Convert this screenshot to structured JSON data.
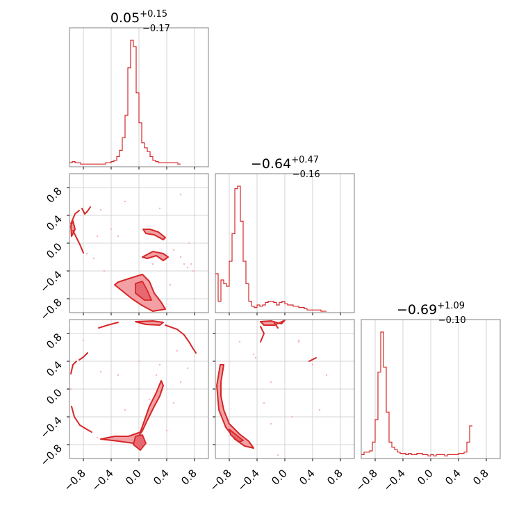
{
  "chart_data": {
    "type": "corner",
    "color": "#d62728",
    "fill_color": "#f2a0a4",
    "grid": true,
    "axis_range": [
      -1,
      1
    ],
    "tick_values": [
      -0.8,
      -0.4,
      0.0,
      0.4,
      0.8
    ],
    "tick_labels": [
      "−0.8",
      "−0.4",
      "0.0",
      "0.4",
      "0.8"
    ],
    "titles": [
      {
        "value": "0.05",
        "plus": "+0.15",
        "minus": "−0.17"
      },
      {
        "value": "−0.64",
        "plus": "+0.47",
        "minus": "−0.16"
      },
      {
        "value": "−0.69",
        "plus": "+1.09",
        "minus": "−0.10"
      }
    ],
    "histograms": [
      {
        "bin_start": -1.0,
        "bin_width": 0.04,
        "counts": [
          2,
          3,
          2,
          2,
          1,
          1,
          1,
          1,
          1,
          1,
          1,
          1,
          1,
          2,
          2,
          3,
          4,
          7,
          12,
          22,
          40,
          78,
          100,
          95,
          58,
          34,
          18,
          14,
          11,
          7,
          4,
          3,
          2,
          2,
          2,
          2,
          2,
          2,
          2,
          1
        ]
      },
      {
        "bin_start": -1.0,
        "bin_width": 0.04,
        "counts": [
          30,
          8,
          25,
          22,
          20,
          40,
          62,
          98,
          100,
          72,
          40,
          22,
          8,
          4,
          3,
          5,
          4,
          5,
          7,
          8,
          8,
          7,
          5,
          7,
          8,
          6,
          5,
          5,
          4,
          4,
          3,
          3,
          2,
          1,
          1,
          1,
          1,
          1,
          0,
          0
        ]
      },
      {
        "bin_start": -1.0,
        "bin_width": 0.04,
        "counts": [
          2,
          4,
          4,
          5,
          12,
          30,
          68,
          100,
          72,
          36,
          12,
          8,
          6,
          4,
          3,
          3,
          2,
          3,
          2,
          2,
          3,
          3,
          2,
          2,
          1,
          2,
          1,
          2,
          2,
          2,
          1,
          2,
          2,
          2,
          2,
          3,
          3,
          4,
          12,
          25
        ]
      }
    ],
    "panels_2d": [
      {
        "row": 1,
        "col": 0,
        "fills": [
          [
            [
              -0.3,
              -0.56
            ],
            [
              -0.05,
              -0.48
            ],
            [
              0.05,
              -0.45
            ],
            [
              0.15,
              -0.55
            ],
            [
              0.22,
              -0.72
            ],
            [
              0.32,
              -0.85
            ],
            [
              0.38,
              -0.95
            ],
            [
              0.2,
              -0.98
            ],
            [
              0.05,
              -0.9
            ],
            [
              -0.1,
              -0.8
            ],
            [
              -0.25,
              -0.68
            ],
            [
              -0.35,
              -0.6
            ]
          ],
          [
            [
              0.05,
              -0.2
            ],
            [
              0.2,
              -0.12
            ],
            [
              0.35,
              -0.15
            ],
            [
              0.42,
              -0.2
            ],
            [
              0.35,
              -0.25
            ],
            [
              0.25,
              -0.18
            ],
            [
              0.12,
              -0.22
            ]
          ],
          [
            [
              0.06,
              0.2
            ],
            [
              0.16,
              0.2
            ],
            [
              0.28,
              0.16
            ],
            [
              0.38,
              0.08
            ],
            [
              0.35,
              0.05
            ],
            [
              0.22,
              0.12
            ],
            [
              0.1,
              0.14
            ]
          ],
          [
            [
              -0.98,
              0.25
            ],
            [
              -0.95,
              0.32
            ],
            [
              -0.92,
              0.2
            ],
            [
              -0.97,
              0.1
            ]
          ]
        ],
        "fills_inner": [
          [
            [
              -0.05,
              -0.58
            ],
            [
              0.05,
              -0.55
            ],
            [
              0.12,
              -0.68
            ],
            [
              0.18,
              -0.82
            ],
            [
              0.08,
              -0.82
            ],
            [
              -0.05,
              -0.72
            ]
          ]
        ],
        "lines": [
          [
            [
              -0.98,
              0.28
            ],
            [
              -0.92,
              0.42
            ],
            [
              -0.86,
              0.47
            ]
          ],
          [
            [
              -0.95,
              0.18
            ],
            [
              -0.9,
              0.08
            ],
            [
              -0.85,
              -0.02
            ],
            [
              -0.8,
              -0.14
            ]
          ],
          [
            [
              -0.82,
              0.5
            ],
            [
              -0.78,
              0.42
            ],
            [
              -0.74,
              0.46
            ],
            [
              -0.7,
              0.52
            ]
          ]
        ],
        "points": [
          [
            -0.55,
            0.48
          ],
          [
            -0.4,
            0.2
          ],
          [
            -0.3,
            0.1
          ],
          [
            -0.75,
            -0.15
          ],
          [
            -0.65,
            -0.22
          ],
          [
            0.2,
            -0.3
          ],
          [
            0.5,
            -0.1
          ],
          [
            0.6,
            -0.2
          ],
          [
            0.65,
            -0.3
          ],
          [
            0.7,
            -0.35
          ],
          [
            0.78,
            -0.4
          ],
          [
            0.75,
            -0.3
          ],
          [
            -0.5,
            -0.4
          ],
          [
            0.3,
            0.5
          ],
          [
            0.6,
            0.7
          ],
          [
            0.72,
            0.0
          ],
          [
            -0.2,
            0.6
          ],
          [
            -0.6,
            0.1
          ],
          [
            0.45,
            -0.6
          ]
        ]
      },
      {
        "row": 2,
        "col": 0,
        "fills": [
          [
            [
              -0.55,
              -0.72
            ],
            [
              -0.3,
              -0.75
            ],
            [
              -0.08,
              -0.78
            ],
            [
              0.05,
              -0.6
            ],
            [
              0.12,
              -0.45
            ],
            [
              0.22,
              -0.25
            ],
            [
              0.3,
              -0.1
            ],
            [
              0.35,
              0.05
            ],
            [
              0.32,
              0.12
            ],
            [
              0.25,
              -0.05
            ],
            [
              0.15,
              -0.25
            ],
            [
              0.08,
              -0.45
            ],
            [
              0.02,
              -0.62
            ],
            [
              -0.15,
              -0.68
            ],
            [
              -0.35,
              -0.68
            ]
          ],
          [
            [
              -0.05,
              0.97
            ],
            [
              0.2,
              0.98
            ],
            [
              0.35,
              0.96
            ],
            [
              0.3,
              0.92
            ],
            [
              0.1,
              0.93
            ]
          ]
        ],
        "fills_inner": [
          [
            [
              -0.05,
              -0.68
            ],
            [
              0.05,
              -0.66
            ],
            [
              0.1,
              -0.78
            ],
            [
              0.02,
              -0.88
            ],
            [
              -0.08,
              -0.8
            ]
          ]
        ],
        "lines": [
          [
            [
              -0.98,
              0.22
            ],
            [
              -0.95,
              0.35
            ],
            [
              -0.9,
              0.4
            ]
          ],
          [
            [
              -0.97,
              -0.25
            ],
            [
              -0.93,
              -0.4
            ],
            [
              -0.85,
              -0.52
            ],
            [
              -0.75,
              -0.58
            ],
            [
              -0.68,
              -0.62
            ]
          ],
          [
            [
              -0.58,
              0.88
            ],
            [
              -0.45,
              0.92
            ],
            [
              -0.3,
              0.96
            ]
          ],
          [
            [
              0.38,
              0.92
            ],
            [
              0.55,
              0.86
            ],
            [
              0.65,
              0.78
            ],
            [
              0.72,
              0.68
            ],
            [
              0.78,
              0.58
            ],
            [
              0.82,
              0.52
            ]
          ],
          [
            [
              -0.86,
              0.42
            ],
            [
              -0.8,
              0.46
            ],
            [
              -0.74,
              0.52
            ]
          ]
        ],
        "points": [
          [
            -0.55,
            0.25
          ],
          [
            -0.3,
            0.2
          ],
          [
            -0.6,
            -0.7
          ],
          [
            0.3,
            0.35
          ],
          [
            0.25,
            0.2
          ],
          [
            0.5,
            -0.2
          ],
          [
            0.6,
            0.1
          ],
          [
            -0.8,
            0.7
          ],
          [
            0.0,
            0.4
          ],
          [
            0.4,
            -0.6
          ],
          [
            0.7,
            0.3
          ],
          [
            -0.2,
            -0.3
          ],
          [
            0.15,
            -0.15
          ],
          [
            0.55,
            0.55
          ],
          [
            -0.98,
            0.0
          ]
        ]
      },
      {
        "row": 2,
        "col": 1,
        "fills": [
          [
            [
              -0.93,
              0.35
            ],
            [
              -0.88,
              0.35
            ],
            [
              -0.92,
              0.1
            ],
            [
              -0.92,
              -0.1
            ],
            [
              -0.88,
              -0.3
            ],
            [
              -0.8,
              -0.5
            ],
            [
              -0.65,
              -0.65
            ],
            [
              -0.52,
              -0.75
            ],
            [
              -0.45,
              -0.85
            ],
            [
              -0.58,
              -0.82
            ],
            [
              -0.72,
              -0.72
            ],
            [
              -0.85,
              -0.55
            ],
            [
              -0.95,
              -0.3
            ],
            [
              -0.98,
              0.05
            ]
          ],
          [
            [
              -0.35,
              0.97
            ],
            [
              -0.2,
              0.98
            ],
            [
              -0.05,
              0.94
            ],
            [
              0.0,
              0.99
            ],
            [
              -0.15,
              0.92
            ],
            [
              -0.3,
              0.92
            ]
          ]
        ],
        "fills_inner": [
          [
            [
              -0.8,
              -0.58
            ],
            [
              -0.7,
              -0.66
            ],
            [
              -0.6,
              -0.74
            ],
            [
              -0.66,
              -0.76
            ],
            [
              -0.78,
              -0.66
            ]
          ]
        ],
        "lines": [
          [
            [
              -0.35,
              0.9
            ],
            [
              -0.3,
              0.8
            ],
            [
              -0.35,
              0.68
            ]
          ],
          [
            [
              0.35,
              0.4
            ],
            [
              0.45,
              0.45
            ]
          ],
          [
            [
              -0.15,
              0.95
            ],
            [
              -0.1,
              0.88
            ]
          ]
        ],
        "points": [
          [
            -0.65,
            0.68
          ],
          [
            -0.45,
            0.5
          ],
          [
            0.2,
            0.7
          ],
          [
            -0.2,
            -0.5
          ],
          [
            -0.1,
            -0.95
          ],
          [
            0.2,
            0.68
          ],
          [
            -0.42,
            0.45
          ],
          [
            0.4,
            0.35
          ],
          [
            -0.3,
            -0.2
          ],
          [
            0.1,
            -0.4
          ],
          [
            0.5,
            -0.3
          ],
          [
            0.6,
            0.2
          ],
          [
            -0.2,
            0.1
          ]
        ]
      }
    ]
  }
}
